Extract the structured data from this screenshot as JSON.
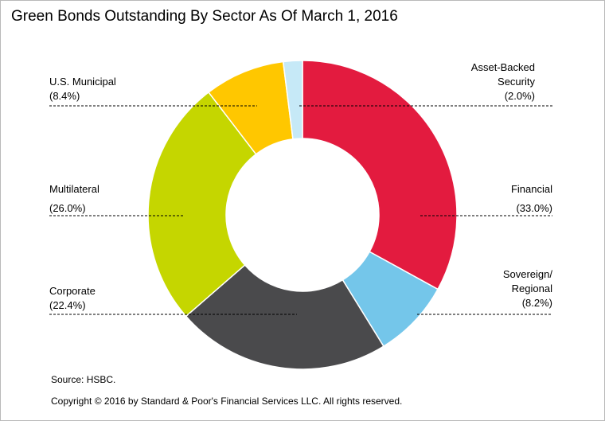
{
  "title": "Green Bonds Outstanding By Sector As Of March 1, 2016",
  "source": "Source: HSBC.",
  "copyright": "Copyright © 2016 by Standard & Poor's Financial Services LLC. All rights reserved.",
  "chart_data": {
    "type": "pie",
    "subtype": "donut",
    "title": "Green Bonds Outstanding By Sector As Of March 1, 2016",
    "slices": [
      {
        "name": "Financial",
        "value": 33.0,
        "value_label": "(33.0%)",
        "color": "#e31b3f"
      },
      {
        "name": "Sovereign/ Regional",
        "value": 8.2,
        "value_label": "(8.2%)",
        "color": "#74c6ea"
      },
      {
        "name": "Corporate",
        "value": 22.4,
        "value_label": "(22.4%)",
        "color": "#4a4a4c"
      },
      {
        "name": "Multilateral",
        "value": 26.0,
        "value_label": "(26.0%)",
        "color": "#c5d600"
      },
      {
        "name": "U.S. Municipal",
        "value": 8.4,
        "value_label": "(8.4%)",
        "color": "#ffc700"
      },
      {
        "name": "Asset-Backed Security",
        "value": 2.0,
        "value_label": "(2.0%)",
        "color": "#c6e9f7"
      }
    ]
  }
}
